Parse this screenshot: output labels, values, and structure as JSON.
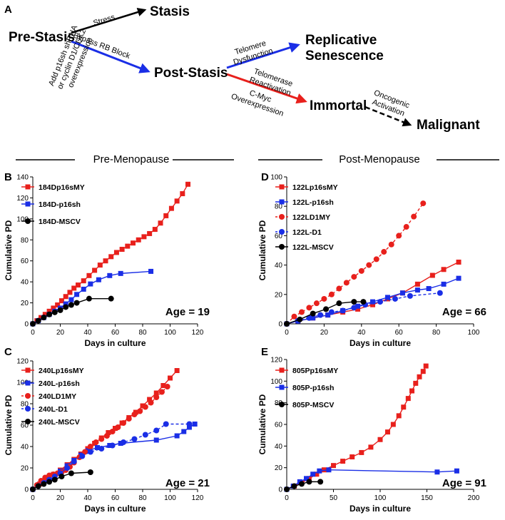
{
  "panel_letters": {
    "a": "A",
    "b": "B",
    "c": "C",
    "d": "D",
    "e": "E"
  },
  "colors": {
    "red": "#e8201c",
    "blue": "#1a2ee6",
    "black": "#000000"
  },
  "diagram": {
    "nodes": {
      "stasis": "Stasis",
      "pre_stasis": "Pre-Stasis",
      "post_stasis": "Post-Stasis",
      "replicative_1": "Replicative",
      "replicative_2": "Senescence",
      "immortal": "Immortal",
      "malignant": "Malignant"
    },
    "edges": {
      "stress": "Stress",
      "bypass": "Bypass RB Block",
      "add_1": "Add p16sh shRNA",
      "add_2": "or cyclin D1/CDK2",
      "add_3": "overexpression",
      "telomere_1": "Telomere",
      "telomere_2": "Dysfunction",
      "telomerase_1": "Telomerase",
      "telomerase_2": "Reactivation",
      "cmyc_1": "C-Myc",
      "cmyc_2": "Overexpression",
      "oncogenic_1": "Oncogenic",
      "oncogenic_2": "Activation"
    }
  },
  "section_headers": {
    "pre": "Pre-Menopause",
    "post": "Post-Menopause"
  },
  "chart_data": [
    {
      "id": "B",
      "type": "line",
      "xlabel": "Days in culture",
      "ylabel": "Cumulative PD",
      "xlim": [
        0,
        120
      ],
      "ylim": [
        0,
        140
      ],
      "xticks": [
        0,
        20,
        40,
        60,
        80,
        100,
        120
      ],
      "yticks": [
        0,
        20,
        40,
        60,
        80,
        100,
        120,
        140
      ],
      "annotation": "Age = 19",
      "series": [
        {
          "name": "184Dp16sMY",
          "color": "#e8201c",
          "marker": "square",
          "dashed": false,
          "x": [
            0,
            3,
            6,
            9,
            12,
            15,
            18,
            21,
            24,
            27,
            30,
            33,
            37,
            41,
            45,
            49,
            53,
            57,
            61,
            65,
            69,
            73,
            77,
            81,
            85,
            89,
            93,
            97,
            101,
            105,
            109,
            113
          ],
          "y": [
            0,
            3,
            6,
            9,
            12,
            15,
            18,
            22,
            26,
            30,
            34,
            37,
            41,
            46,
            51,
            56,
            60,
            64,
            68,
            71,
            74,
            77,
            80,
            83,
            86,
            90,
            96,
            103,
            110,
            117,
            124,
            133
          ]
        },
        {
          "name": "184D-p16sh",
          "color": "#1a2ee6",
          "marker": "square",
          "dashed": false,
          "x": [
            0,
            4,
            8,
            12,
            16,
            20,
            24,
            28,
            32,
            37,
            42,
            48,
            56,
            64,
            86
          ],
          "y": [
            0,
            3,
            6,
            9,
            12,
            15,
            19,
            23,
            28,
            33,
            38,
            42,
            46,
            48,
            50
          ]
        },
        {
          "name": "184D-MSCV",
          "color": "#000000",
          "marker": "circle",
          "dashed": false,
          "x": [
            0,
            4,
            8,
            12,
            16,
            20,
            24,
            28,
            32,
            41,
            57
          ],
          "y": [
            0,
            3,
            6,
            9,
            11,
            13,
            16,
            18,
            20,
            24,
            24
          ]
        }
      ]
    },
    {
      "id": "C",
      "type": "line",
      "xlabel": "Days in culture",
      "ylabel": "Cumulative PD",
      "xlim": [
        0,
        120
      ],
      "ylim": [
        0,
        120
      ],
      "xticks": [
        0,
        20,
        40,
        60,
        80,
        100,
        120
      ],
      "yticks": [
        0,
        20,
        40,
        60,
        80,
        100,
        120
      ],
      "annotation": "Age = 21",
      "series": [
        {
          "name": "240Lp16sMY",
          "color": "#e8201c",
          "marker": "square",
          "dashed": false,
          "x": [
            0,
            5,
            10,
            15,
            20,
            25,
            30,
            35,
            40,
            45,
            50,
            55,
            60,
            65,
            70,
            75,
            80,
            85,
            90,
            95,
            100,
            105
          ],
          "y": [
            0,
            5,
            10,
            14,
            18,
            23,
            28,
            33,
            38,
            43,
            48,
            53,
            57,
            62,
            67,
            72,
            78,
            84,
            90,
            97,
            104,
            111
          ]
        },
        {
          "name": "240L-p16sh",
          "color": "#1a2ee6",
          "marker": "square",
          "dashed": false,
          "x": [
            0,
            4,
            8,
            12,
            16,
            20,
            25,
            30,
            35,
            40,
            47,
            56,
            64,
            90,
            105,
            110,
            114,
            118
          ],
          "y": [
            0,
            4,
            8,
            11,
            14,
            17,
            22,
            27,
            32,
            36,
            39,
            41,
            43,
            46,
            50,
            54,
            58,
            61
          ]
        },
        {
          "name": "240LD1MY",
          "color": "#e8201c",
          "marker": "circle",
          "dashed": true,
          "x": [
            0,
            3,
            6,
            9,
            12,
            15,
            18,
            21,
            24,
            27,
            30,
            34,
            38,
            42,
            46,
            50,
            54,
            58,
            62,
            66,
            70,
            74,
            78,
            82,
            86,
            90,
            94,
            98
          ],
          "y": [
            0,
            4,
            8,
            11,
            13,
            14,
            15,
            16,
            18,
            21,
            25,
            30,
            35,
            40,
            44,
            47,
            50,
            54,
            58,
            62,
            66,
            70,
            73,
            77,
            81,
            86,
            91,
            96
          ]
        },
        {
          "name": "240L-D1",
          "color": "#1a2ee6",
          "marker": "circle",
          "dashed": true,
          "x": [
            0,
            4,
            8,
            12,
            16,
            20,
            25,
            30,
            36,
            42,
            50,
            58,
            66,
            74,
            82,
            90,
            97,
            114
          ],
          "y": [
            0,
            3,
            6,
            9,
            12,
            15,
            20,
            26,
            31,
            35,
            38,
            41,
            44,
            47,
            51,
            55,
            61,
            61
          ]
        },
        {
          "name": "240L-MSCV",
          "color": "#000000",
          "marker": "circle",
          "dashed": false,
          "x": [
            0,
            4,
            8,
            12,
            16,
            21,
            28,
            42
          ],
          "y": [
            0,
            3,
            5,
            7,
            9,
            12,
            15,
            16
          ]
        }
      ]
    },
    {
      "id": "D",
      "type": "line",
      "xlabel": "Days in culture",
      "ylabel": "Cumulative PD",
      "xlim": [
        0,
        100
      ],
      "ylim": [
        0,
        100
      ],
      "xticks": [
        0,
        20,
        40,
        60,
        80,
        100
      ],
      "yticks": [
        0,
        20,
        40,
        60,
        80,
        100
      ],
      "annotation": "Age = 66",
      "series": [
        {
          "name": "122Lp16sMY",
          "color": "#e8201c",
          "marker": "square",
          "dashed": false,
          "x": [
            0,
            6,
            14,
            22,
            30,
            38,
            46,
            54,
            62,
            70,
            78,
            84,
            92
          ],
          "y": [
            0,
            2,
            4,
            6,
            8,
            10,
            13,
            17,
            21,
            27,
            33,
            37,
            42
          ]
        },
        {
          "name": "122L-p16sh",
          "color": "#1a2ee6",
          "marker": "square",
          "dashed": false,
          "x": [
            0,
            6,
            14,
            22,
            30,
            38,
            46,
            54,
            62,
            70,
            76,
            84,
            92
          ],
          "y": [
            0,
            2,
            4,
            6,
            9,
            12,
            15,
            18,
            21,
            23,
            24,
            27,
            31
          ]
        },
        {
          "name": "122LD1MY",
          "color": "#e8201c",
          "marker": "circle",
          "dashed": true,
          "x": [
            0,
            4,
            8,
            12,
            16,
            20,
            24,
            28,
            32,
            36,
            40,
            44,
            48,
            52,
            56,
            60,
            64,
            68,
            73
          ],
          "y": [
            0,
            5,
            8,
            11,
            14,
            17,
            20,
            24,
            28,
            32,
            36,
            40,
            44,
            49,
            54,
            60,
            66,
            73,
            82
          ]
        },
        {
          "name": "122L-D1",
          "color": "#1a2ee6",
          "marker": "circle",
          "dashed": true,
          "x": [
            0,
            6,
            12,
            18,
            24,
            30,
            36,
            42,
            50,
            58,
            66,
            82
          ],
          "y": [
            0,
            2,
            4,
            6,
            8,
            9,
            11,
            13,
            15,
            17,
            19,
            21
          ]
        },
        {
          "name": "122L-MSCV",
          "color": "#000000",
          "marker": "circle",
          "dashed": false,
          "x": [
            0,
            7,
            14,
            21,
            28,
            36,
            41
          ],
          "y": [
            0,
            3,
            7,
            10,
            14,
            15,
            15
          ]
        }
      ]
    },
    {
      "id": "E",
      "type": "line",
      "xlabel": "Days in culture",
      "ylabel": "Cumulative PD",
      "xlim": [
        0,
        200
      ],
      "ylim": [
        0,
        120
      ],
      "xticks": [
        0,
        50,
        100,
        150,
        200
      ],
      "yticks": [
        0,
        20,
        40,
        60,
        80,
        100,
        120
      ],
      "annotation": "Age = 91",
      "series": [
        {
          "name": "805Pp16sMY",
          "color": "#e8201c",
          "marker": "square",
          "dashed": false,
          "x": [
            0,
            8,
            16,
            24,
            32,
            40,
            50,
            60,
            70,
            80,
            90,
            100,
            108,
            114,
            120,
            125,
            130,
            134,
            138,
            142,
            146,
            149
          ],
          "y": [
            0,
            3,
            6,
            10,
            14,
            18,
            22,
            26,
            30,
            34,
            39,
            46,
            53,
            60,
            68,
            76,
            84,
            91,
            98,
            104,
            109,
            114
          ]
        },
        {
          "name": "805P-p16sh",
          "color": "#1a2ee6",
          "marker": "square",
          "dashed": false,
          "x": [
            0,
            7,
            14,
            21,
            28,
            35,
            45,
            161,
            182
          ],
          "y": [
            0,
            3,
            7,
            10,
            14,
            17,
            18,
            16,
            17
          ]
        },
        {
          "name": "805P-MSCV",
          "color": "#000000",
          "marker": "circle",
          "dashed": false,
          "x": [
            0,
            8,
            16,
            24,
            36
          ],
          "y": [
            0,
            3,
            5,
            7,
            7
          ]
        }
      ]
    }
  ]
}
